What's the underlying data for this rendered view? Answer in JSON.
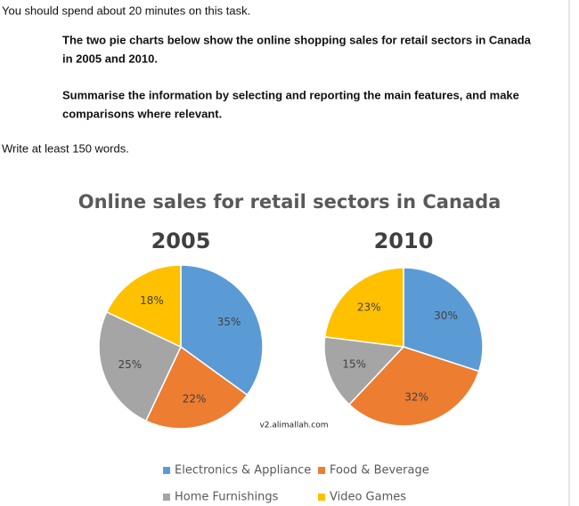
{
  "task": {
    "intro": "You should spend about 20 minutes on this task.",
    "prompt": [
      "The two pie charts below show the online shopping sales for retail sectors in Canada",
      "in 2005 and 2010."
    ],
    "instruction": [
      "Summarise the information by selecting and reporting the main features, and make",
      "comparisons where relevant."
    ],
    "word_count": "Write at least 150 words."
  },
  "figure": {
    "title": "Online sales for retail sectors in Canada",
    "watermark": "v2.alimallah.com"
  },
  "legend": {
    "categories": [
      "Electronics & Appliance",
      "Food & Beverage",
      "Home Furnishings",
      "Video Games"
    ],
    "colors": [
      "#5b9bd5",
      "#ed7d31",
      "#a5a5a5",
      "#ffc000"
    ]
  },
  "chart_data": [
    {
      "type": "pie",
      "title": "2005",
      "values": [
        35,
        22,
        25,
        18
      ],
      "value_labels": [
        "35%",
        "22%",
        "25%",
        "18%"
      ]
    },
    {
      "type": "pie",
      "title": "2010",
      "values": [
        30,
        32,
        15,
        23
      ],
      "value_labels": [
        "30%",
        "32%",
        "15%",
        "23%"
      ]
    }
  ]
}
